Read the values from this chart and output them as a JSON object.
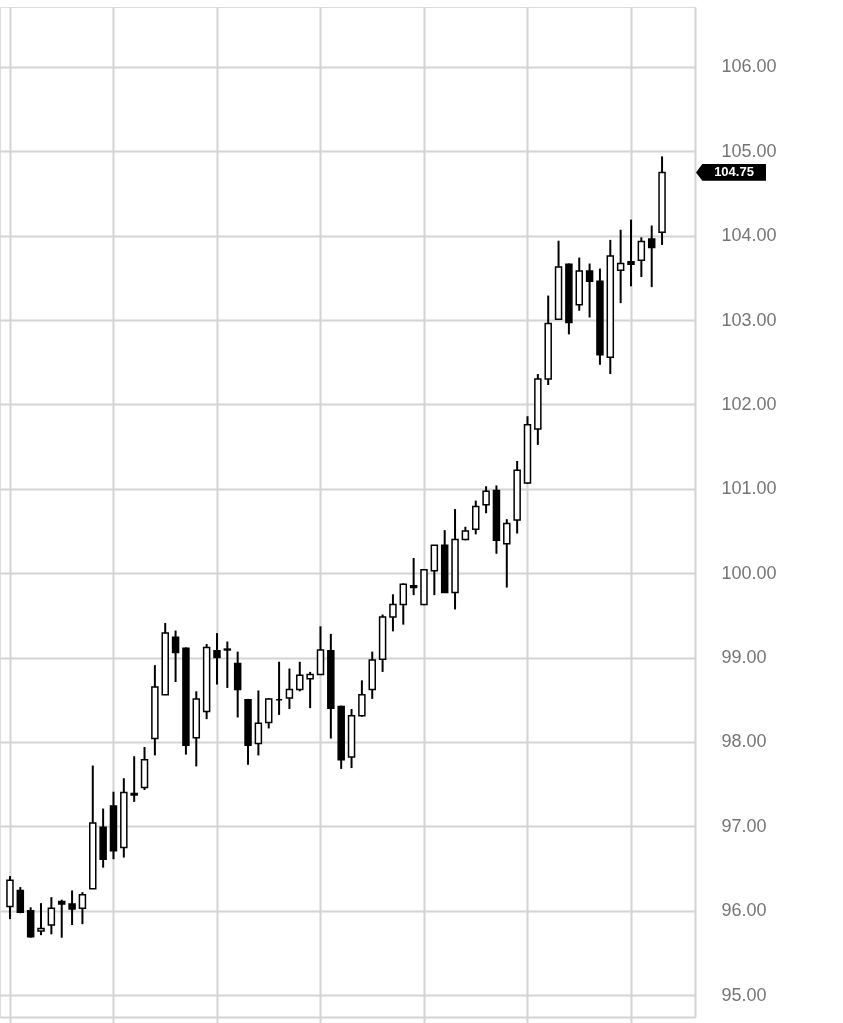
{
  "chart_data": {
    "type": "candlestick",
    "categories": [
      null,
      null,
      null,
      null,
      null,
      null,
      null,
      null,
      null,
      null,
      null,
      null,
      null,
      null,
      null,
      null,
      null,
      null,
      null,
      null,
      null,
      null,
      null,
      null,
      null,
      null,
      null,
      null,
      null,
      null,
      null,
      null,
      null,
      null,
      null,
      null,
      null,
      null,
      null,
      null,
      null,
      null,
      null,
      null,
      null,
      null,
      null,
      null,
      null,
      null,
      null,
      null,
      null,
      null,
      null,
      null,
      null,
      null,
      null,
      null,
      null,
      null,
      null,
      null
    ],
    "ohlc": [
      [
        96.05,
        96.41,
        95.9,
        96.36
      ],
      [
        96.24,
        96.28,
        95.97,
        95.98
      ],
      [
        96.0,
        96.04,
        95.68,
        95.69
      ],
      [
        95.76,
        96.09,
        95.71,
        95.79
      ],
      [
        95.83,
        96.16,
        95.72,
        96.03
      ],
      [
        96.11,
        96.13,
        95.68,
        96.08
      ],
      [
        96.08,
        96.24,
        95.83,
        96.02
      ],
      [
        96.03,
        96.22,
        95.84,
        96.19
      ],
      [
        96.26,
        97.72,
        96.26,
        97.04
      ],
      [
        96.99,
        97.21,
        96.51,
        96.61
      ],
      [
        97.24,
        97.41,
        96.61,
        96.71
      ],
      [
        96.75,
        97.57,
        96.63,
        97.4
      ],
      [
        97.37,
        97.83,
        97.29,
        97.39
      ],
      [
        97.46,
        97.94,
        97.43,
        97.79
      ],
      [
        98.04,
        98.91,
        97.84,
        98.65
      ],
      [
        98.56,
        99.41,
        98.56,
        99.29
      ],
      [
        99.24,
        99.32,
        98.71,
        99.06
      ],
      [
        99.11,
        99.12,
        97.85,
        97.96
      ],
      [
        98.05,
        98.6,
        97.71,
        98.51
      ],
      [
        98.36,
        99.16,
        98.27,
        99.12
      ],
      [
        99.08,
        99.29,
        98.68,
        99.0
      ],
      [
        99.1,
        99.19,
        98.64,
        99.09
      ],
      [
        98.93,
        99.07,
        98.29,
        98.62
      ],
      [
        98.5,
        98.51,
        97.73,
        97.96
      ],
      [
        97.98,
        98.61,
        97.84,
        98.22
      ],
      [
        98.23,
        98.52,
        98.16,
        98.51
      ],
      [
        98.5,
        98.95,
        98.32,
        98.5
      ],
      [
        98.52,
        98.87,
        98.39,
        98.62
      ],
      [
        98.62,
        98.95,
        98.6,
        98.79
      ],
      [
        98.75,
        98.83,
        98.4,
        98.8
      ],
      [
        98.8,
        99.37,
        98.8,
        99.09
      ],
      [
        99.08,
        99.28,
        98.04,
        98.4
      ],
      [
        98.42,
        98.43,
        97.68,
        97.79
      ],
      [
        97.82,
        98.39,
        97.69,
        98.31
      ],
      [
        98.31,
        98.73,
        98.3,
        98.56
      ],
      [
        98.62,
        99.07,
        98.51,
        98.97
      ],
      [
        98.98,
        99.51,
        98.83,
        99.48
      ],
      [
        99.48,
        99.75,
        99.31,
        99.63
      ],
      [
        99.63,
        99.88,
        99.39,
        99.87
      ],
      [
        99.85,
        100.18,
        99.74,
        99.83
      ],
      [
        99.63,
        100.05,
        99.62,
        100.04
      ],
      [
        100.03,
        100.33,
        99.74,
        100.33
      ],
      [
        100.33,
        100.51,
        99.77,
        99.77
      ],
      [
        99.77,
        100.76,
        99.57,
        100.4
      ],
      [
        100.4,
        100.55,
        100.39,
        100.5
      ],
      [
        100.52,
        100.86,
        100.46,
        100.79
      ],
      [
        100.81,
        101.03,
        100.71,
        100.97
      ],
      [
        100.98,
        101.04,
        100.23,
        100.39
      ],
      [
        100.35,
        100.64,
        99.83,
        100.59
      ],
      [
        100.63,
        101.33,
        100.47,
        101.22
      ],
      [
        101.07,
        101.86,
        101.06,
        101.76
      ],
      [
        101.71,
        102.36,
        101.52,
        102.3
      ],
      [
        102.3,
        103.29,
        102.23,
        102.96
      ],
      [
        103.01,
        103.94,
        103.0,
        103.63
      ],
      [
        103.66,
        103.67,
        102.83,
        102.97
      ],
      [
        103.18,
        103.74,
        103.11,
        103.58
      ],
      [
        103.58,
        103.67,
        103.03,
        103.46
      ],
      [
        103.46,
        103.61,
        102.47,
        102.59
      ],
      [
        102.56,
        103.95,
        102.36,
        103.76
      ],
      [
        103.59,
        104.07,
        103.2,
        103.67
      ],
      [
        103.69,
        104.19,
        103.4,
        103.66
      ],
      [
        103.71,
        103.98,
        103.51,
        103.93
      ],
      [
        103.96,
        104.12,
        103.39,
        103.86
      ],
      [
        104.04,
        104.94,
        103.89,
        104.75
      ]
    ],
    "color": "#000000",
    "ylim": [
      94.74,
      106.71
    ],
    "yticks": [
      {
        "value": 95,
        "label": "95.00"
      },
      {
        "value": 96,
        "label": "96.00"
      },
      {
        "value": 97,
        "label": "97.00"
      },
      {
        "value": 98,
        "label": "98.00"
      },
      {
        "value": 99,
        "label": "99.00"
      },
      {
        "value": 100,
        "label": "100.00"
      },
      {
        "value": 101,
        "label": "101.00"
      },
      {
        "value": 102,
        "label": "102.00"
      },
      {
        "value": 103,
        "label": "103.00"
      },
      {
        "value": 104,
        "label": "104.00"
      },
      {
        "value": 105,
        "label": "105.00"
      },
      {
        "value": 106,
        "label": "106.00"
      }
    ],
    "grid": true,
    "tick_labels": "y",
    "annotations": [
      "104.75"
    ]
  }
}
